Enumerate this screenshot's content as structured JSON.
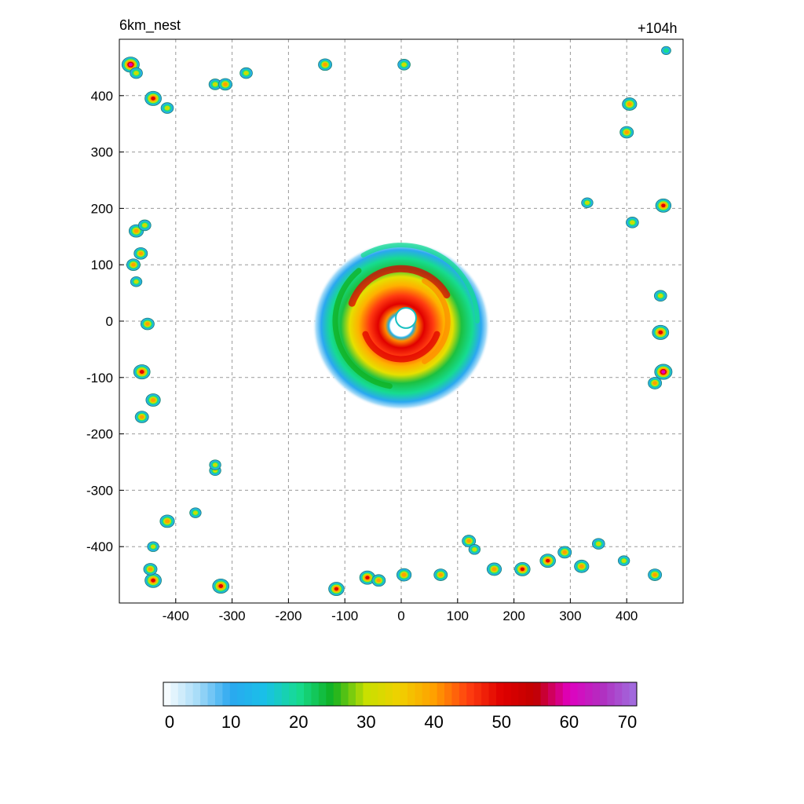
{
  "header": {
    "title_left": "6km_nest",
    "title_right": "+104h"
  },
  "chart_data": {
    "type": "heatmap",
    "title": "6km_nest",
    "annotation": "+104h",
    "xlabel": "",
    "ylabel": "",
    "xlim": [
      -500,
      500
    ],
    "ylim": [
      -500,
      500
    ],
    "xticks": [
      -400,
      -300,
      -200,
      -100,
      0,
      100,
      200,
      300,
      400
    ],
    "yticks": [
      400,
      300,
      200,
      100,
      0,
      -100,
      -200,
      -300,
      -400
    ],
    "grid": true,
    "colorbar": {
      "min": 0,
      "max": 70,
      "ticks": [
        0,
        10,
        20,
        30,
        40,
        50,
        60,
        70
      ],
      "placement": "bottom"
    },
    "storm": {
      "center": [
        0,
        0
      ],
      "eye_radius": 18,
      "outer_radius": 150
    },
    "cells": [
      [
        -480,
        455,
        60
      ],
      [
        -470,
        440,
        35
      ],
      [
        -440,
        395,
        55
      ],
      [
        -415,
        378,
        35
      ],
      [
        -330,
        420,
        35
      ],
      [
        -312,
        420,
        40
      ],
      [
        -275,
        440,
        35
      ],
      [
        -135,
        455,
        40
      ],
      [
        5,
        455,
        35
      ],
      [
        -470,
        160,
        45
      ],
      [
        -455,
        170,
        35
      ],
      [
        -462,
        120,
        40
      ],
      [
        -475,
        100,
        40
      ],
      [
        -470,
        70,
        30
      ],
      [
        -450,
        -5,
        40
      ],
      [
        -460,
        -90,
        55
      ],
      [
        -440,
        -140,
        45
      ],
      [
        -460,
        -170,
        40
      ],
      [
        -415,
        -355,
        45
      ],
      [
        -365,
        -340,
        30
      ],
      [
        -330,
        -265,
        30
      ],
      [
        -330,
        -255,
        30
      ],
      [
        -440,
        -400,
        30
      ],
      [
        -440,
        -460,
        55
      ],
      [
        -445,
        -440,
        40
      ],
      [
        -320,
        -470,
        55
      ],
      [
        -115,
        -475,
        50
      ],
      [
        -60,
        -455,
        50
      ],
      [
        -40,
        -460,
        40
      ],
      [
        5,
        -450,
        45
      ],
      [
        70,
        -450,
        40
      ],
      [
        120,
        -390,
        40
      ],
      [
        130,
        -405,
        30
      ],
      [
        165,
        -440,
        45
      ],
      [
        215,
        -440,
        50
      ],
      [
        260,
        -425,
        50
      ],
      [
        290,
        -410,
        40
      ],
      [
        320,
        -435,
        45
      ],
      [
        350,
        -395,
        35
      ],
      [
        395,
        -425,
        30
      ],
      [
        450,
        -450,
        40
      ],
      [
        405,
        385,
        45
      ],
      [
        400,
        335,
        40
      ],
      [
        465,
        205,
        50
      ],
      [
        410,
        175,
        35
      ],
      [
        330,
        210,
        30
      ],
      [
        460,
        45,
        35
      ],
      [
        460,
        -20,
        55
      ],
      [
        465,
        -90,
        60
      ],
      [
        450,
        -110,
        40
      ],
      [
        470,
        480,
        20
      ]
    ]
  }
}
